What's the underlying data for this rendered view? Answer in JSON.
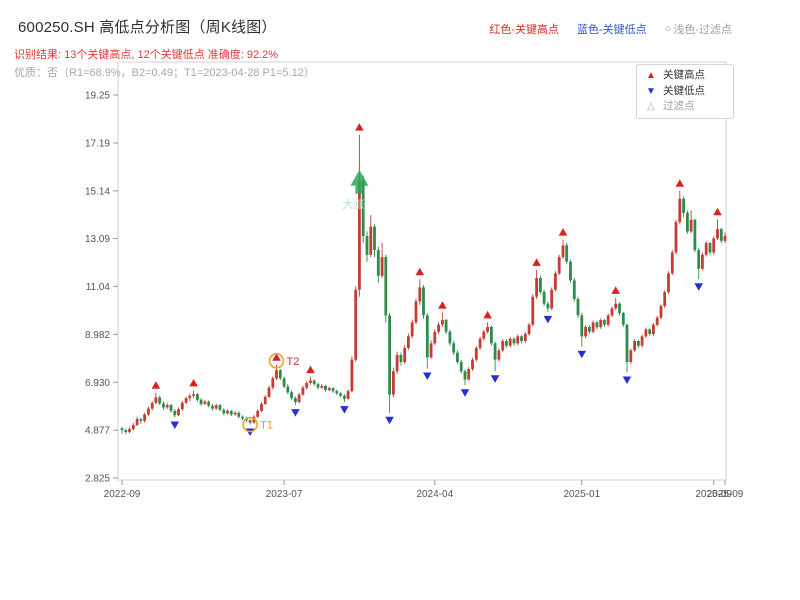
{
  "header": {
    "title": "600250.SH 高低点分析图（周K线图）",
    "top_legend": [
      {
        "icon": "",
        "label": "红色-关键高点",
        "color": "#d93025"
      },
      {
        "icon": "",
        "label": "蓝色-关键低点",
        "color": "#3355cc"
      },
      {
        "icon": "○",
        "label": "浅色-过滤点",
        "color": "#9aa0a6"
      }
    ],
    "result_line": "识别结果: 13个关键高点, 12个关键低点  准确度: 92.2%",
    "quality_line": "优质：否（R1=68.9%，B2=0.49；T1=2023-04-28 P1=5.12）"
  },
  "legend_box": {
    "items": [
      {
        "icon": "▲",
        "label": "关键高点",
        "color": "#dd2020"
      },
      {
        "icon": "▼",
        "label": "关键低点",
        "color": "#2531cf"
      },
      {
        "icon": "△",
        "label": "过滤点",
        "color": "#aaaaaa"
      }
    ]
  },
  "chart_data": {
    "type": "candlestick",
    "title": "600250.SH 高低点分析图（周K线图）",
    "frequency": "weekly",
    "ylim": [
      2.825,
      19.25
    ],
    "y_ticks": [
      "19.25",
      "17.19",
      "15.14",
      "13.09",
      "11.04",
      "8.982",
      "6.930",
      "4.877",
      "2.825"
    ],
    "x_ticks": [
      {
        "label": "2022-09",
        "week": 0
      },
      {
        "label": "2023-07",
        "week": 43
      },
      {
        "label": "2024-04",
        "week": 83
      },
      {
        "label": "2025-01",
        "week": 122
      },
      {
        "label": "2025-09",
        "week": 157
      },
      {
        "label": "2025-09",
        "week": 160
      }
    ],
    "up_color": "#c43c33",
    "down_color": "#2e8b4a",
    "marker_high_color": "#dd2020",
    "marker_low_color": "#2531cf",
    "candles": [
      [
        4.95,
        5.02,
        4.72,
        4.88
      ],
      [
        4.88,
        4.95,
        4.7,
        4.8
      ],
      [
        4.8,
        5.0,
        4.75,
        4.92
      ],
      [
        4.92,
        5.18,
        4.85,
        5.1
      ],
      [
        5.1,
        5.45,
        5.05,
        5.35
      ],
      [
        5.35,
        5.42,
        5.15,
        5.28
      ],
      [
        5.28,
        5.62,
        5.2,
        5.55
      ],
      [
        5.55,
        5.9,
        5.48,
        5.8
      ],
      [
        5.8,
        6.12,
        5.72,
        6.05
      ],
      [
        6.05,
        6.48,
        5.98,
        6.28
      ],
      [
        6.28,
        6.35,
        5.95,
        6.02
      ],
      [
        6.02,
        6.12,
        5.76,
        5.85
      ],
      [
        5.85,
        6.05,
        5.78,
        5.95
      ],
      [
        5.95,
        6.0,
        5.62,
        5.7
      ],
      [
        5.7,
        5.78,
        5.42,
        5.52
      ],
      [
        5.52,
        5.85,
        5.48,
        5.78
      ],
      [
        5.78,
        6.12,
        5.7,
        6.05
      ],
      [
        6.05,
        6.32,
        6.0,
        6.25
      ],
      [
        6.25,
        6.45,
        6.12,
        6.35
      ],
      [
        6.35,
        6.58,
        6.25,
        6.42
      ],
      [
        6.42,
        6.48,
        6.1,
        6.18
      ],
      [
        6.18,
        6.25,
        5.92,
        6.0
      ],
      [
        6.0,
        6.18,
        5.95,
        6.1
      ],
      [
        6.1,
        6.15,
        5.85,
        5.92
      ],
      [
        5.92,
        6.0,
        5.72,
        5.8
      ],
      [
        5.8,
        6.02,
        5.75,
        5.95
      ],
      [
        5.95,
        6.0,
        5.68,
        5.75
      ],
      [
        5.75,
        5.82,
        5.52,
        5.6
      ],
      [
        5.6,
        5.78,
        5.55,
        5.7
      ],
      [
        5.7,
        5.75,
        5.48,
        5.55
      ],
      [
        5.55,
        5.7,
        5.5,
        5.62
      ],
      [
        5.62,
        5.68,
        5.38,
        5.45
      ],
      [
        5.45,
        5.52,
        5.3,
        5.38
      ],
      [
        5.38,
        5.45,
        5.22,
        5.3
      ],
      [
        5.3,
        5.36,
        5.12,
        5.2
      ],
      [
        5.2,
        5.52,
        5.16,
        5.45
      ],
      [
        5.45,
        5.78,
        5.4,
        5.7
      ],
      [
        5.7,
        6.08,
        5.65,
        6.0
      ],
      [
        6.0,
        6.38,
        5.95,
        6.3
      ],
      [
        6.3,
        6.78,
        6.25,
        6.7
      ],
      [
        6.7,
        7.18,
        6.62,
        7.1
      ],
      [
        7.1,
        7.68,
        7.02,
        7.45
      ],
      [
        7.45,
        7.5,
        7.02,
        7.1
      ],
      [
        7.1,
        7.18,
        6.68,
        6.75
      ],
      [
        6.75,
        6.85,
        6.42,
        6.5
      ],
      [
        6.5,
        6.58,
        6.18,
        6.25
      ],
      [
        6.25,
        6.32,
        5.95,
        6.08
      ],
      [
        6.08,
        6.48,
        6.02,
        6.4
      ],
      [
        6.4,
        6.78,
        6.35,
        6.7
      ],
      [
        6.7,
        6.98,
        6.62,
        6.9
      ],
      [
        6.9,
        7.15,
        6.82,
        7.0
      ],
      [
        7.0,
        7.05,
        6.78,
        6.85
      ],
      [
        6.85,
        6.92,
        6.62,
        6.7
      ],
      [
        6.7,
        6.85,
        6.65,
        6.78
      ],
      [
        6.78,
        6.82,
        6.52,
        6.6
      ],
      [
        6.6,
        6.75,
        6.55,
        6.68
      ],
      [
        6.68,
        6.72,
        6.48,
        6.55
      ],
      [
        6.55,
        6.62,
        6.38,
        6.45
      ],
      [
        6.45,
        6.52,
        6.28,
        6.35
      ],
      [
        6.35,
        6.42,
        6.08,
        6.22
      ],
      [
        6.22,
        6.62,
        6.18,
        6.55
      ],
      [
        6.55,
        8.05,
        6.5,
        7.9
      ],
      [
        7.9,
        11.05,
        7.82,
        10.9
      ],
      [
        10.9,
        17.55,
        10.6,
        15.6
      ],
      [
        15.6,
        15.8,
        12.9,
        13.2
      ],
      [
        13.2,
        13.4,
        12.1,
        12.4
      ],
      [
        12.4,
        14.1,
        12.3,
        13.6
      ],
      [
        13.6,
        13.7,
        12.3,
        12.6
      ],
      [
        12.6,
        12.75,
        11.2,
        11.5
      ],
      [
        11.5,
        12.9,
        11.4,
        12.3
      ],
      [
        12.3,
        12.4,
        9.5,
        9.8
      ],
      [
        9.8,
        9.9,
        5.62,
        6.4
      ],
      [
        6.4,
        7.55,
        6.3,
        7.4
      ],
      [
        7.4,
        8.25,
        7.3,
        8.1
      ],
      [
        8.1,
        8.2,
        7.65,
        7.8
      ],
      [
        7.8,
        8.52,
        7.72,
        8.4
      ],
      [
        8.4,
        9.02,
        8.32,
        8.9
      ],
      [
        8.9,
        9.62,
        8.82,
        9.5
      ],
      [
        9.5,
        10.52,
        9.42,
        10.4
      ],
      [
        10.4,
        11.35,
        10.25,
        11.0
      ],
      [
        11.0,
        11.1,
        9.65,
        9.8
      ],
      [
        9.8,
        9.9,
        7.52,
        8.0
      ],
      [
        8.0,
        8.72,
        7.92,
        8.6
      ],
      [
        8.6,
        9.2,
        8.52,
        9.1
      ],
      [
        9.1,
        9.52,
        9.0,
        9.4
      ],
      [
        9.4,
        9.92,
        9.3,
        9.6
      ],
      [
        9.6,
        9.65,
        9.0,
        9.1
      ],
      [
        9.1,
        9.18,
        8.5,
        8.6
      ],
      [
        8.6,
        8.72,
        8.1,
        8.2
      ],
      [
        8.2,
        8.3,
        7.7,
        7.8
      ],
      [
        7.8,
        7.9,
        7.3,
        7.4
      ],
      [
        7.4,
        7.48,
        6.8,
        7.05
      ],
      [
        7.05,
        7.58,
        7.0,
        7.5
      ],
      [
        7.5,
        7.98,
        7.42,
        7.9
      ],
      [
        7.9,
        8.48,
        7.82,
        8.4
      ],
      [
        8.4,
        8.88,
        8.32,
        8.8
      ],
      [
        8.8,
        9.18,
        8.72,
        9.1
      ],
      [
        9.1,
        9.5,
        9.02,
        9.3
      ],
      [
        9.3,
        9.35,
        8.5,
        8.6
      ],
      [
        8.6,
        8.68,
        7.4,
        7.9
      ],
      [
        7.9,
        8.38,
        7.82,
        8.3
      ],
      [
        8.3,
        8.78,
        8.22,
        8.7
      ],
      [
        8.7,
        8.78,
        8.4,
        8.5
      ],
      [
        8.5,
        8.88,
        8.42,
        8.8
      ],
      [
        8.8,
        8.85,
        8.5,
        8.6
      ],
      [
        8.6,
        8.98,
        8.52,
        8.9
      ],
      [
        8.9,
        8.95,
        8.6,
        8.7
      ],
      [
        8.7,
        9.08,
        8.62,
        9.0
      ],
      [
        9.0,
        9.48,
        8.92,
        9.4
      ],
      [
        9.4,
        10.7,
        9.32,
        10.6
      ],
      [
        10.6,
        11.75,
        10.5,
        11.4
      ],
      [
        11.4,
        11.5,
        10.7,
        10.8
      ],
      [
        10.8,
        10.9,
        10.2,
        10.3
      ],
      [
        10.3,
        10.4,
        9.95,
        10.1
      ],
      [
        10.1,
        11.0,
        10.02,
        10.9
      ],
      [
        10.9,
        11.7,
        10.82,
        11.6
      ],
      [
        11.6,
        12.4,
        11.52,
        12.3
      ],
      [
        12.3,
        13.05,
        12.22,
        12.8
      ],
      [
        12.8,
        12.9,
        12.0,
        12.1
      ],
      [
        12.1,
        12.2,
        11.2,
        11.3
      ],
      [
        11.3,
        11.4,
        10.4,
        10.5
      ],
      [
        10.5,
        10.6,
        9.7,
        9.8
      ],
      [
        9.8,
        9.9,
        8.45,
        8.9
      ],
      [
        8.9,
        9.38,
        8.82,
        9.3
      ],
      [
        9.3,
        9.38,
        9.0,
        9.1
      ],
      [
        9.1,
        9.58,
        9.02,
        9.5
      ],
      [
        9.5,
        9.55,
        9.2,
        9.3
      ],
      [
        9.3,
        9.68,
        9.22,
        9.6
      ],
      [
        9.6,
        9.65,
        9.3,
        9.4
      ],
      [
        9.4,
        9.88,
        9.32,
        9.8
      ],
      [
        9.8,
        10.18,
        9.72,
        10.1
      ],
      [
        10.1,
        10.55,
        10.02,
        10.3
      ],
      [
        10.3,
        10.35,
        9.8,
        9.9
      ],
      [
        9.9,
        9.95,
        9.3,
        9.4
      ],
      [
        9.4,
        9.45,
        7.35,
        7.8
      ],
      [
        7.8,
        8.38,
        7.72,
        8.3
      ],
      [
        8.3,
        8.78,
        8.22,
        8.7
      ],
      [
        8.7,
        8.75,
        8.4,
        8.5
      ],
      [
        8.5,
        8.98,
        8.42,
        8.9
      ],
      [
        8.9,
        9.28,
        8.82,
        9.2
      ],
      [
        9.2,
        9.25,
        8.9,
        9.0
      ],
      [
        9.0,
        9.48,
        8.92,
        9.4
      ],
      [
        9.4,
        9.78,
        9.32,
        9.7
      ],
      [
        9.7,
        10.28,
        9.62,
        10.2
      ],
      [
        10.2,
        10.88,
        10.12,
        10.8
      ],
      [
        10.8,
        11.7,
        10.72,
        11.6
      ],
      [
        11.6,
        12.6,
        11.52,
        12.5
      ],
      [
        12.5,
        13.9,
        12.42,
        13.8
      ],
      [
        13.8,
        15.14,
        13.7,
        14.8
      ],
      [
        14.8,
        14.9,
        14.0,
        14.2
      ],
      [
        14.2,
        14.3,
        13.3,
        13.4
      ],
      [
        13.4,
        14.3,
        13.32,
        13.9
      ],
      [
        13.9,
        13.95,
        12.5,
        12.6
      ],
      [
        12.6,
        12.7,
        11.35,
        11.8
      ],
      [
        11.8,
        12.5,
        11.72,
        12.4
      ],
      [
        12.4,
        12.98,
        12.32,
        12.9
      ],
      [
        12.9,
        12.95,
        12.4,
        12.5
      ],
      [
        12.5,
        13.18,
        12.42,
        13.1
      ],
      [
        13.1,
        13.92,
        13.02,
        13.5
      ],
      [
        13.5,
        13.55,
        12.9,
        13.0
      ],
      [
        13.0,
        13.35,
        12.92,
        13.2
      ]
    ],
    "key_high_weeks": [
      9,
      19,
      41,
      50,
      63,
      79,
      85,
      97,
      110,
      117,
      131,
      148,
      158
    ],
    "key_low_weeks": [
      14,
      34,
      46,
      59,
      71,
      81,
      91,
      99,
      113,
      122,
      134,
      153
    ],
    "annotations": [
      {
        "id": "T2",
        "type": "circle",
        "week": 41,
        "price": 7.85,
        "label": "T2",
        "circle_color": "#f0a030",
        "label_color": "#b03a2e"
      },
      {
        "id": "T1",
        "type": "circle",
        "week": 34,
        "price": 5.12,
        "label": "T1",
        "circle_color": "#f0a030",
        "label_color": "#e59b25"
      },
      {
        "id": "surge",
        "type": "big-arrow",
        "week": 63,
        "price": 15.4,
        "label": "大涨",
        "arrow_color": "#2aa858",
        "label_color": "#b8e2c2"
      }
    ]
  }
}
